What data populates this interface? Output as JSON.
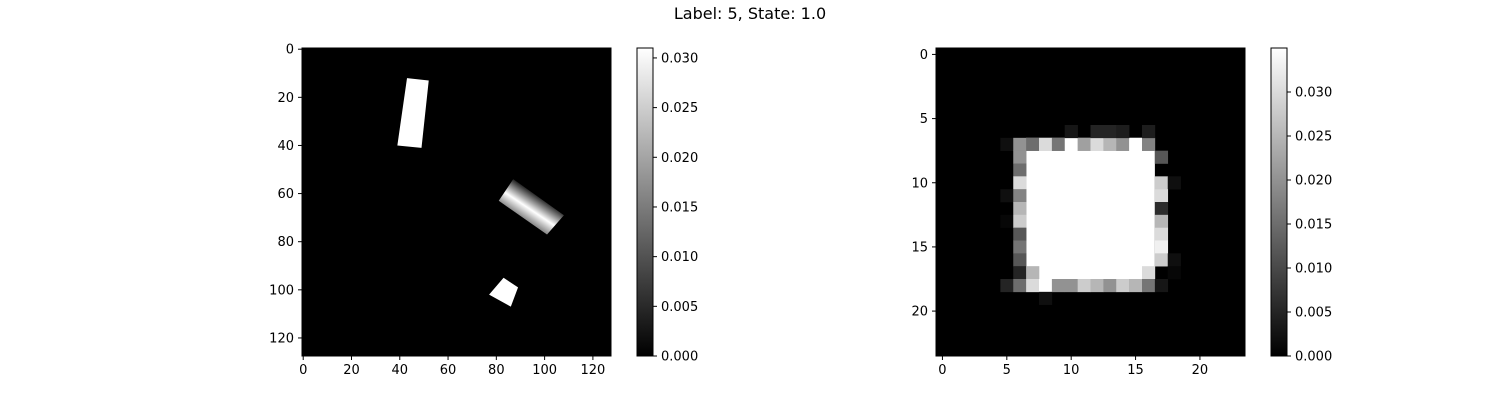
{
  "figure": {
    "title": "Label: 5, State: 1.0"
  },
  "chart_data": [
    {
      "type": "heatmap",
      "title": "",
      "xlabel": "",
      "ylabel": "",
      "image_size": [
        128,
        128
      ],
      "extent": [
        -0.5,
        127.5,
        127.5,
        -0.5
      ],
      "xticks": [
        0,
        20,
        40,
        60,
        80,
        100,
        120
      ],
      "yticks": [
        0,
        20,
        40,
        60,
        80,
        100,
        120
      ],
      "colormap": "gray",
      "vmin": 0.0,
      "vmax": 0.031,
      "colorbar_ticks": [
        0.0,
        0.005,
        0.01,
        0.015,
        0.02,
        0.025,
        0.03
      ],
      "colorbar_tick_labels": [
        "0.000",
        "0.005",
        "0.010",
        "0.015",
        "0.020",
        "0.025",
        "0.030"
      ],
      "background_value": 0.0,
      "shapes": [
        {
          "name": "bar-top",
          "value": 0.031,
          "gradient": false,
          "polygon": [
            [
              43,
              12
            ],
            [
              52,
              13
            ],
            [
              49,
              41
            ],
            [
              39,
              40
            ]
          ]
        },
        {
          "name": "bar-diagonal",
          "value": 0.031,
          "gradient": true,
          "value_range": [
            0.004,
            0.031
          ],
          "polygon": [
            [
              87,
              54
            ],
            [
              108,
              69
            ],
            [
              101,
              77
            ],
            [
              81,
              63
            ]
          ]
        },
        {
          "name": "square-bottom",
          "value": 0.031,
          "gradient": false,
          "polygon": [
            [
              83,
              95
            ],
            [
              89,
              99
            ],
            [
              86,
              107
            ],
            [
              77,
              102
            ]
          ]
        }
      ]
    },
    {
      "type": "heatmap",
      "title": "",
      "xlabel": "",
      "ylabel": "",
      "image_size": [
        24,
        24
      ],
      "extent": [
        -0.5,
        23.5,
        23.5,
        -0.5
      ],
      "xticks": [
        0,
        5,
        10,
        15,
        20
      ],
      "yticks": [
        0,
        5,
        10,
        15,
        20
      ],
      "colormap": "gray",
      "vmin": 0.0,
      "vmax": 0.035,
      "colorbar_ticks": [
        0.0,
        0.005,
        0.01,
        0.015,
        0.02,
        0.025,
        0.03
      ],
      "colorbar_tick_labels": [
        "0.000",
        "0.005",
        "0.010",
        "0.015",
        "0.020",
        "0.025",
        "0.030"
      ],
      "background_value": 0.0,
      "fill": {
        "rows": [
          7,
          17
        ],
        "cols": [
          7,
          16
        ],
        "value": 0.035
      },
      "cells": [
        [
          7,
          5,
          0.002
        ],
        [
          7,
          6,
          0.02
        ],
        [
          7,
          7,
          0.015
        ],
        [
          7,
          8,
          0.03
        ],
        [
          7,
          9,
          0.016
        ],
        [
          7,
          10,
          0.035
        ],
        [
          7,
          11,
          0.022
        ],
        [
          7,
          12,
          0.03
        ],
        [
          7,
          13,
          0.025
        ],
        [
          7,
          14,
          0.02
        ],
        [
          7,
          15,
          0.035
        ],
        [
          7,
          16,
          0.018
        ],
        [
          6,
          10,
          0.003
        ],
        [
          6,
          12,
          0.005
        ],
        [
          6,
          13,
          0.005
        ],
        [
          6,
          14,
          0.004
        ],
        [
          6,
          16,
          0.004
        ],
        [
          8,
          6,
          0.02
        ],
        [
          8,
          17,
          0.012
        ],
        [
          9,
          6,
          0.015
        ],
        [
          10,
          6,
          0.03
        ],
        [
          10,
          17,
          0.028
        ],
        [
          10,
          18,
          0.002
        ],
        [
          11,
          5,
          0.002
        ],
        [
          11,
          6,
          0.018
        ],
        [
          11,
          17,
          0.03
        ],
        [
          12,
          6,
          0.025
        ],
        [
          12,
          17,
          0.006
        ],
        [
          13,
          5,
          0.001
        ],
        [
          13,
          6,
          0.028
        ],
        [
          13,
          17,
          0.025
        ],
        [
          14,
          6,
          0.012
        ],
        [
          14,
          17,
          0.03
        ],
        [
          15,
          6,
          0.016
        ],
        [
          15,
          17,
          0.033
        ],
        [
          16,
          6,
          0.012
        ],
        [
          16,
          17,
          0.028
        ],
        [
          16,
          18,
          0.002
        ],
        [
          17,
          6,
          0.005
        ],
        [
          17,
          7,
          0.025
        ],
        [
          17,
          16,
          0.03
        ],
        [
          17,
          18,
          0.001
        ],
        [
          18,
          5,
          0.005
        ],
        [
          18,
          6,
          0.015
        ],
        [
          18,
          7,
          0.03
        ],
        [
          18,
          8,
          0.035
        ],
        [
          18,
          9,
          0.02
        ],
        [
          18,
          10,
          0.02
        ],
        [
          18,
          11,
          0.028
        ],
        [
          18,
          12,
          0.025
        ],
        [
          18,
          13,
          0.02
        ],
        [
          18,
          14,
          0.028
        ],
        [
          18,
          15,
          0.025
        ],
        [
          18,
          16,
          0.016
        ],
        [
          18,
          17,
          0.003
        ],
        [
          19,
          8,
          0.002
        ]
      ]
    }
  ]
}
